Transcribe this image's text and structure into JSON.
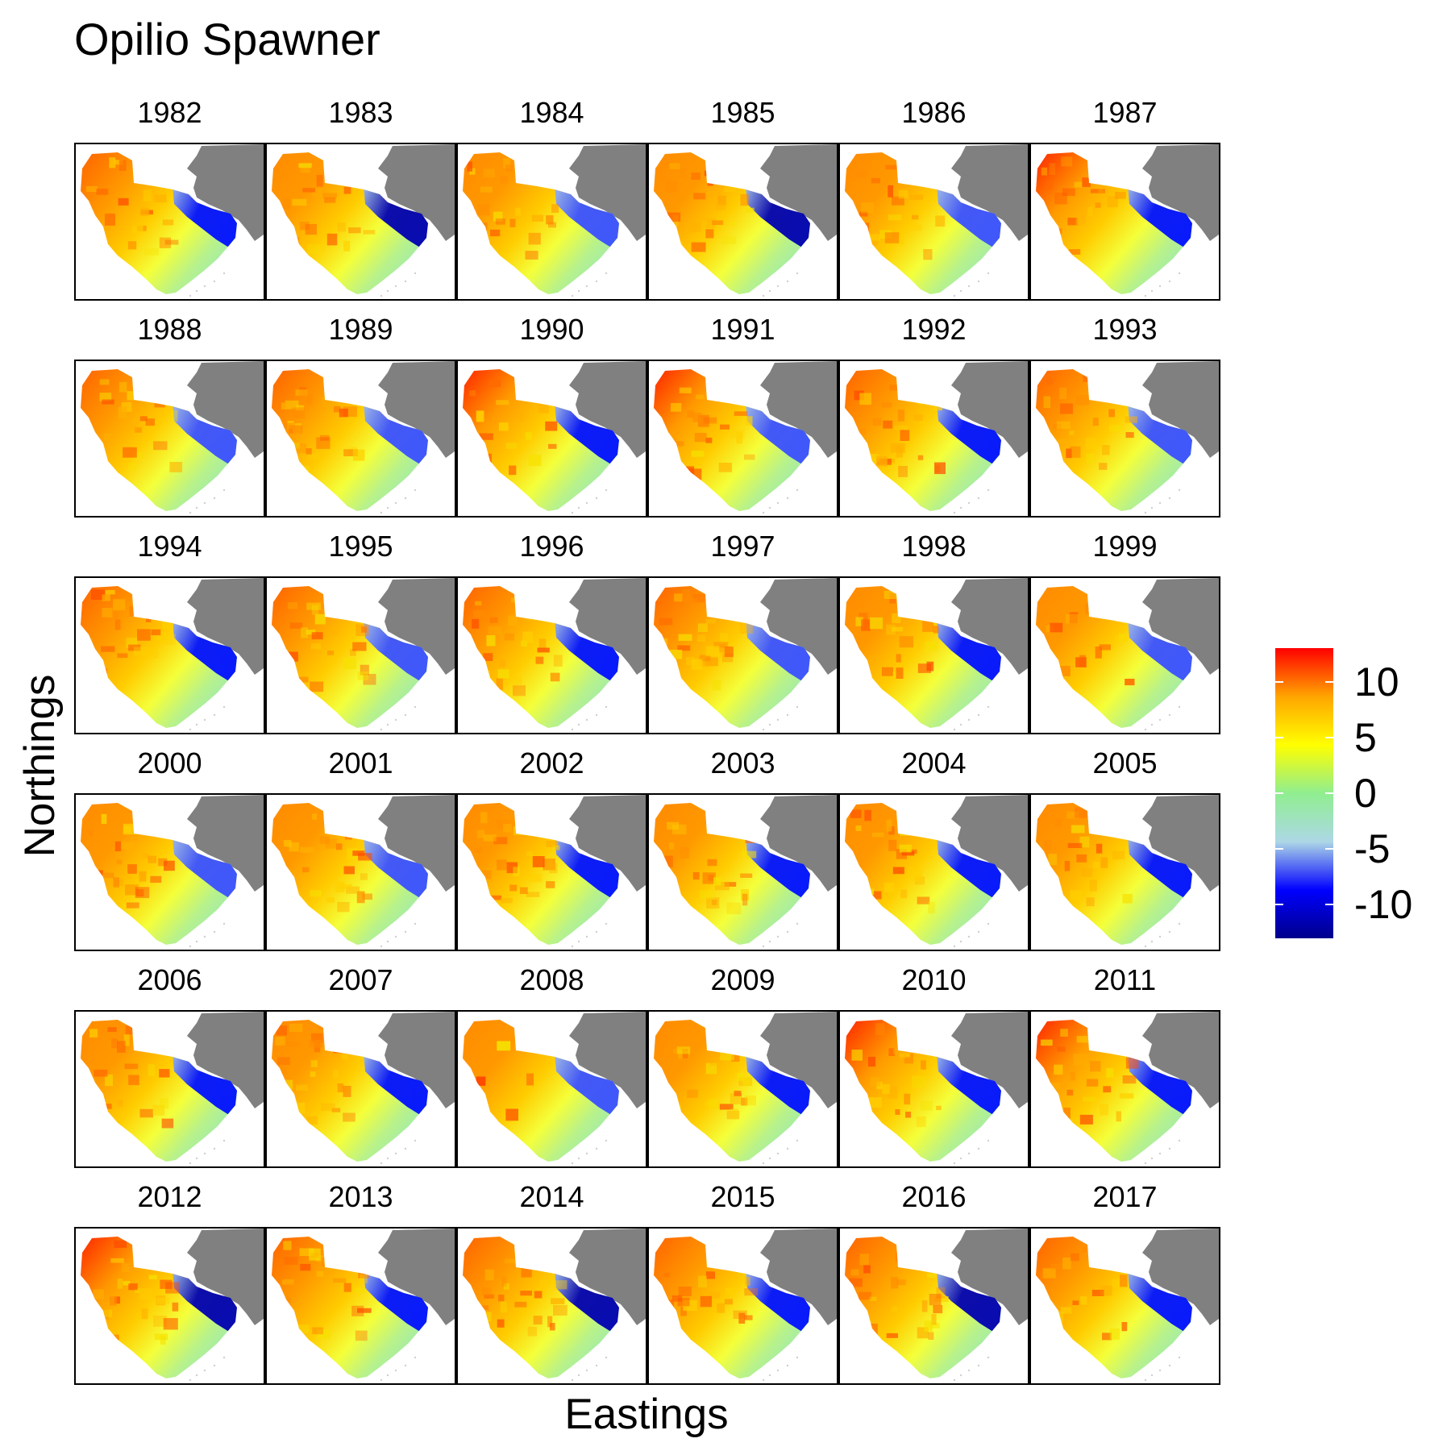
{
  "title": "Opilio Spawner",
  "x_axis_label": "Eastings",
  "y_axis_label": "Northings",
  "facet_variable_years": [
    1982,
    1983,
    1984,
    1985,
    1986,
    1987,
    1988,
    1989,
    1990,
    1991,
    1992,
    1993,
    1994,
    1995,
    1996,
    1997,
    1998,
    1999,
    2000,
    2001,
    2002,
    2003,
    2004,
    2005,
    2006,
    2007,
    2008,
    2009,
    2010,
    2011,
    2012,
    2013,
    2014,
    2015,
    2016,
    2017
  ],
  "facet_labels": [
    "1982",
    "1983",
    "1984",
    "1985",
    "1986",
    "1987",
    "1988",
    "1989",
    "1990",
    "1991",
    "1992",
    "1993",
    "1994",
    "1995",
    "1996",
    "1997",
    "1998",
    "1999",
    "2000",
    "2001",
    "2002",
    "2003",
    "2004",
    "2005",
    "2006",
    "2007",
    "2008",
    "2009",
    "2010",
    "2011",
    "2012",
    "2013",
    "2014",
    "2015",
    "2016",
    "2017"
  ],
  "layout": {
    "columns": 6,
    "rows": 6
  },
  "land_color": "#808080",
  "legend": {
    "labels": [
      "10",
      "5",
      "0",
      "-5",
      "-10"
    ],
    "tick_values": [
      10,
      5,
      0,
      -5,
      -10
    ],
    "range": [
      -13,
      13
    ],
    "colors": [
      "#00008B",
      "#0000FF",
      "#ADD8E6",
      "#90EE90",
      "#FFFF00",
      "#FFA500",
      "#FF0000"
    ]
  },
  "panel_intensity": {
    "description_values_warm": [
      0.85,
      0.8,
      0.7,
      0.7,
      0.8,
      0.95,
      0.9,
      0.9,
      0.95,
      0.95,
      0.9,
      0.9,
      0.85,
      0.9,
      0.9,
      0.85,
      0.8,
      0.75,
      0.75,
      0.7,
      0.75,
      0.75,
      0.8,
      0.75,
      0.7,
      0.7,
      0.8,
      0.8,
      0.95,
      1.0,
      0.95,
      0.9,
      0.9,
      0.9,
      0.85,
      0.85
    ],
    "description_values_cold": [
      0.85,
      0.9,
      0.55,
      0.95,
      0.6,
      0.85,
      0.55,
      0.6,
      0.8,
      0.7,
      0.8,
      0.65,
      0.75,
      0.7,
      0.85,
      0.65,
      0.85,
      0.5,
      0.55,
      0.65,
      0.75,
      0.75,
      0.8,
      0.85,
      0.8,
      0.75,
      0.65,
      0.75,
      0.8,
      0.8,
      0.9,
      0.8,
      0.95,
      0.8,
      0.9,
      0.85
    ]
  }
}
